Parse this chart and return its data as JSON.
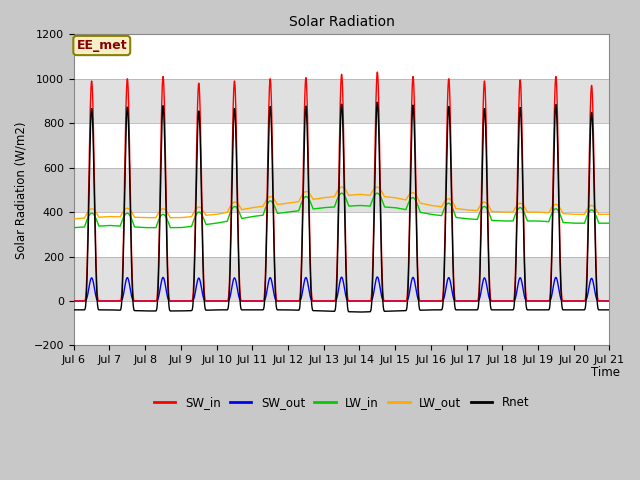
{
  "title": "Solar Radiation",
  "ylabel": "Solar Radiation (W/m2)",
  "xlabel": "Time",
  "ylim": [
    -200,
    1200
  ],
  "yticks": [
    -200,
    0,
    200,
    400,
    600,
    800,
    1000,
    1200
  ],
  "annotation": "EE_met",
  "x_tick_labels": [
    "Jul 6",
    "Jul 7",
    "Jul 8",
    "Jul 9",
    "Jul 10",
    "Jul 11",
    "Jul 12",
    "Jul 13",
    "Jul 14",
    "Jul 15",
    "Jul 16",
    "Jul 17",
    "Jul 18",
    "Jul 19",
    "Jul 20",
    "Jul 21"
  ],
  "n_days": 15,
  "series": {
    "SW_in": {
      "color": "#ff0000",
      "lw": 1.0
    },
    "SW_out": {
      "color": "#0000ff",
      "lw": 1.0
    },
    "LW_in": {
      "color": "#00cc00",
      "lw": 1.0
    },
    "LW_out": {
      "color": "#ffaa00",
      "lw": 1.0
    },
    "Rnet": {
      "color": "#000000",
      "lw": 1.0
    }
  },
  "fig_bg": "#c8c8c8",
  "stripe_colors": [
    "#ffffff",
    "#e0e0e0"
  ]
}
